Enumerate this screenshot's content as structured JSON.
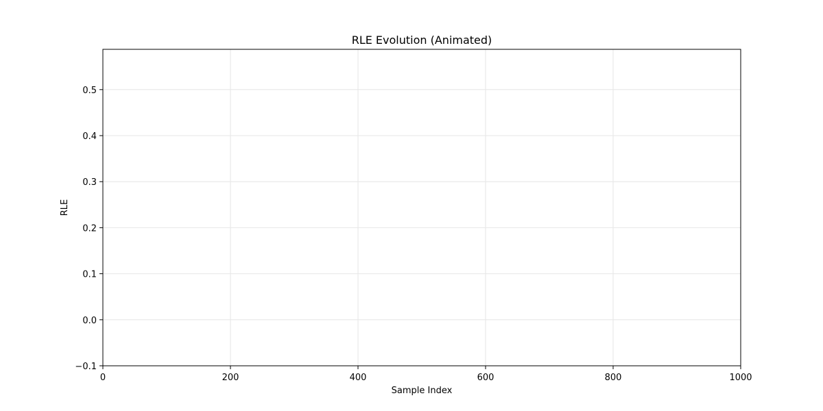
{
  "chart_data": {
    "type": "line",
    "title": "RLE Evolution (Animated)",
    "xlabel": "Sample Index",
    "ylabel": "RLE",
    "xlim": [
      0,
      1000
    ],
    "ylim": [
      -0.1,
      0.5875
    ],
    "x_ticks": [
      0,
      200,
      400,
      600,
      800,
      1000
    ],
    "y_ticks": [
      -0.1,
      0.0,
      0.1,
      0.2,
      0.3,
      0.4,
      0.5
    ],
    "x_tick_labels": [
      "0",
      "200",
      "400",
      "600",
      "800",
      "1000"
    ],
    "y_tick_labels": [
      "−0.1",
      "0.0",
      "0.1",
      "0.2",
      "0.3",
      "0.4",
      "0.5"
    ],
    "grid": true,
    "series": [],
    "colors": {
      "grid": "#e6e6e6",
      "axes": "#000000",
      "background": "#ffffff"
    }
  }
}
